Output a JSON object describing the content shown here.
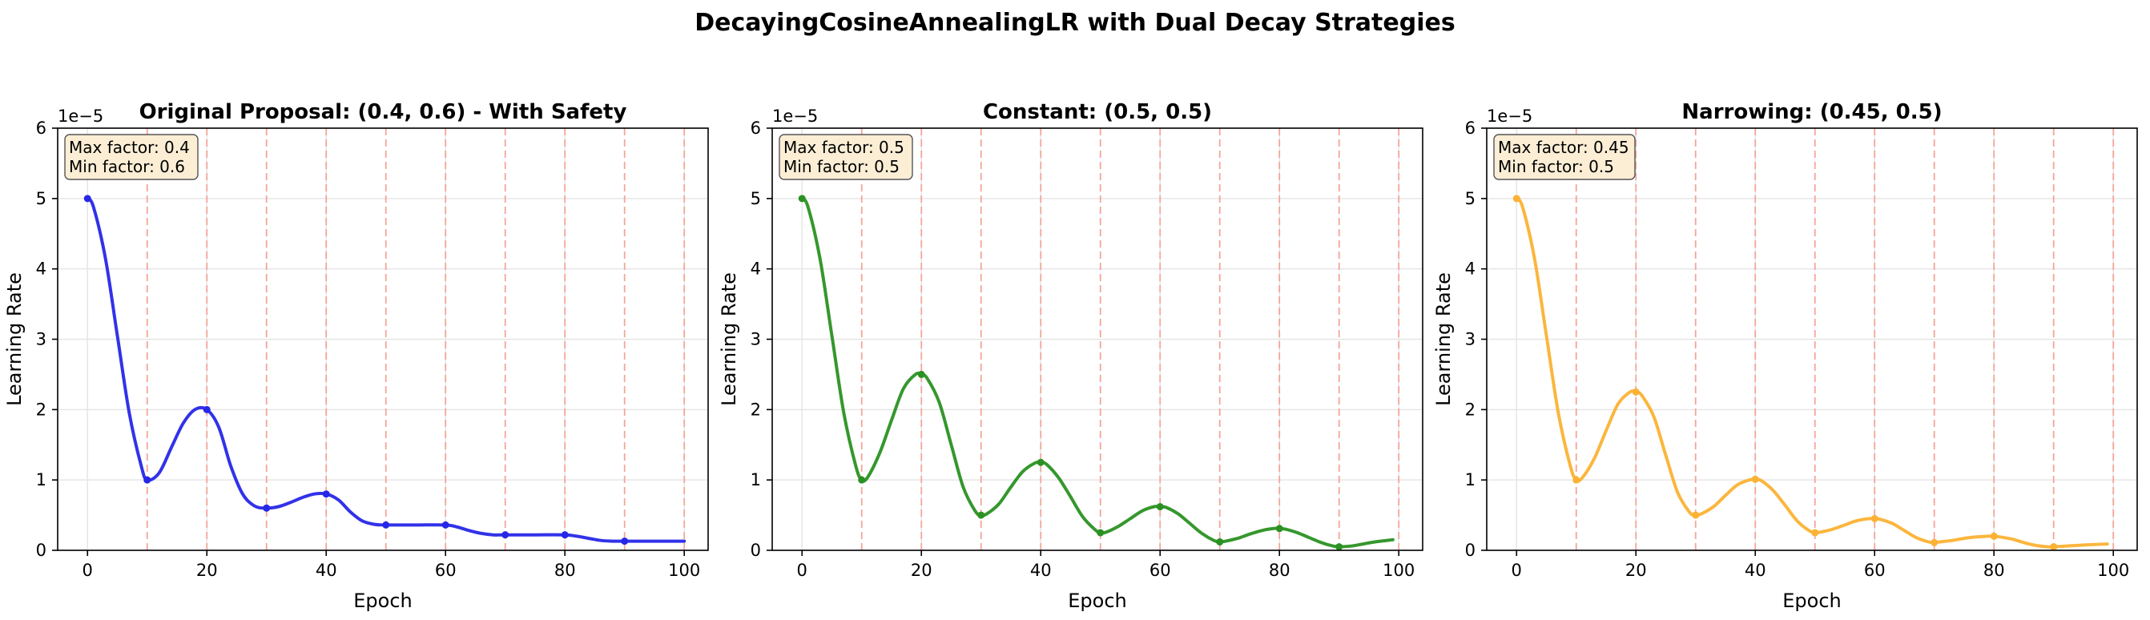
{
  "suptitle": "DecayingCosineAnnealingLR with Dual Decay Strategies",
  "axis_common": {
    "xlabel": "Epoch",
    "ylabel": "Learning Rate",
    "scale_label": "1e−5",
    "xlim": [
      -5,
      104
    ],
    "ylim": [
      0,
      6
    ],
    "xticks": [
      "0",
      "20",
      "40",
      "60",
      "80",
      "100"
    ],
    "yticks": [
      "0",
      "1",
      "2",
      "3",
      "4",
      "5",
      "6"
    ],
    "grid": true,
    "restart_epochs": [
      10,
      20,
      30,
      40,
      50,
      60,
      70,
      80,
      90,
      100
    ],
    "restart_line_color": "#f4a59a"
  },
  "chart_data": [
    {
      "type": "line",
      "title": "Original Proposal: (0.4, 0.6) - With Safety",
      "annotation": [
        "Max factor: 0.4",
        "Min factor: 0.6"
      ],
      "color": "#2727e8",
      "y_unit_multiplier": 1e-05,
      "x": [
        0,
        1,
        3,
        5,
        7,
        9,
        10,
        12,
        14,
        16,
        18,
        20,
        22,
        24,
        26,
        28,
        30,
        32,
        34,
        36,
        38,
        40,
        42,
        44,
        46,
        48,
        50,
        55,
        60,
        62,
        64,
        66,
        68,
        70,
        75,
        80,
        82,
        84,
        86,
        88,
        90,
        95,
        100
      ],
      "y": [
        5.0,
        4.88,
        4.15,
        3.05,
        1.95,
        1.2,
        1.0,
        1.1,
        1.45,
        1.8,
        2.0,
        2.0,
        1.75,
        1.2,
        0.8,
        0.63,
        0.6,
        0.62,
        0.68,
        0.75,
        0.8,
        0.8,
        0.72,
        0.55,
        0.42,
        0.37,
        0.36,
        0.36,
        0.36,
        0.33,
        0.28,
        0.24,
        0.22,
        0.22,
        0.22,
        0.22,
        0.2,
        0.17,
        0.14,
        0.13,
        0.13,
        0.13,
        0.13
      ],
      "markers_x": [
        0,
        10,
        20,
        30,
        40,
        50,
        60,
        70,
        80,
        90
      ],
      "markers_y": [
        5.0,
        1.0,
        2.0,
        0.6,
        0.8,
        0.36,
        0.36,
        0.22,
        0.22,
        0.13
      ]
    },
    {
      "type": "line",
      "title": "Constant: (0.5, 0.5)",
      "annotation": [
        "Max factor: 0.5",
        "Min factor: 0.5"
      ],
      "color": "#2a9122",
      "y_unit_multiplier": 1e-05,
      "x": [
        0,
        1,
        3,
        5,
        7,
        9,
        10,
        11,
        13,
        15,
        17,
        19,
        20,
        21,
        23,
        25,
        27,
        29,
        30,
        31,
        33,
        35,
        37,
        39,
        40,
        41,
        43,
        45,
        47,
        49,
        50,
        51,
        53,
        55,
        57,
        59,
        60,
        61,
        63,
        65,
        67,
        69,
        70,
        71,
        73,
        75,
        77,
        79,
        80,
        81,
        83,
        85,
        87,
        89,
        90,
        92,
        94,
        96,
        99
      ],
      "y": [
        5.0,
        4.88,
        4.15,
        3.05,
        1.95,
        1.2,
        1.0,
        1.04,
        1.38,
        1.85,
        2.3,
        2.5,
        2.5,
        2.44,
        2.1,
        1.5,
        0.9,
        0.56,
        0.5,
        0.52,
        0.66,
        0.9,
        1.12,
        1.24,
        1.25,
        1.22,
        1.03,
        0.76,
        0.48,
        0.3,
        0.25,
        0.26,
        0.34,
        0.45,
        0.56,
        0.62,
        0.62,
        0.61,
        0.52,
        0.38,
        0.24,
        0.14,
        0.12,
        0.13,
        0.17,
        0.23,
        0.28,
        0.31,
        0.31,
        0.3,
        0.25,
        0.18,
        0.11,
        0.06,
        0.05,
        0.06,
        0.09,
        0.12,
        0.15
      ],
      "markers_x": [
        0,
        10,
        20,
        30,
        40,
        50,
        60,
        70,
        80,
        90
      ],
      "markers_y": [
        5.0,
        1.0,
        2.5,
        0.5,
        1.25,
        0.25,
        0.62,
        0.12,
        0.31,
        0.05
      ]
    },
    {
      "type": "line",
      "title": "Narrowing: (0.45, 0.5)",
      "annotation": [
        "Max factor: 0.45",
        "Min factor: 0.5"
      ],
      "color": "#fbb234",
      "y_unit_multiplier": 1e-05,
      "x": [
        0,
        1,
        3,
        5,
        7,
        9,
        10,
        11,
        13,
        15,
        17,
        19,
        20,
        21,
        23,
        25,
        27,
        29,
        30,
        31,
        33,
        35,
        37,
        39,
        40,
        41,
        43,
        45,
        47,
        49,
        50,
        51,
        53,
        55,
        57,
        59,
        60,
        61,
        63,
        65,
        67,
        69,
        70,
        71,
        73,
        75,
        77,
        79,
        80,
        81,
        83,
        85,
        87,
        89,
        90,
        92,
        94,
        96,
        99
      ],
      "y": [
        5.0,
        4.88,
        4.15,
        3.05,
        1.95,
        1.2,
        1.0,
        1.03,
        1.3,
        1.7,
        2.08,
        2.25,
        2.25,
        2.2,
        1.9,
        1.35,
        0.82,
        0.54,
        0.5,
        0.52,
        0.62,
        0.78,
        0.93,
        1.0,
        1.01,
        0.99,
        0.85,
        0.64,
        0.42,
        0.28,
        0.25,
        0.26,
        0.3,
        0.36,
        0.42,
        0.45,
        0.45,
        0.44,
        0.38,
        0.28,
        0.18,
        0.12,
        0.11,
        0.12,
        0.14,
        0.17,
        0.19,
        0.2,
        0.2,
        0.19,
        0.16,
        0.11,
        0.07,
        0.05,
        0.05,
        0.06,
        0.07,
        0.08,
        0.09
      ],
      "markers_x": [
        0,
        10,
        20,
        30,
        40,
        50,
        60,
        70,
        80,
        90
      ],
      "markers_y": [
        5.0,
        1.0,
        2.25,
        0.5,
        1.01,
        0.25,
        0.45,
        0.11,
        0.2,
        0.05
      ]
    }
  ]
}
